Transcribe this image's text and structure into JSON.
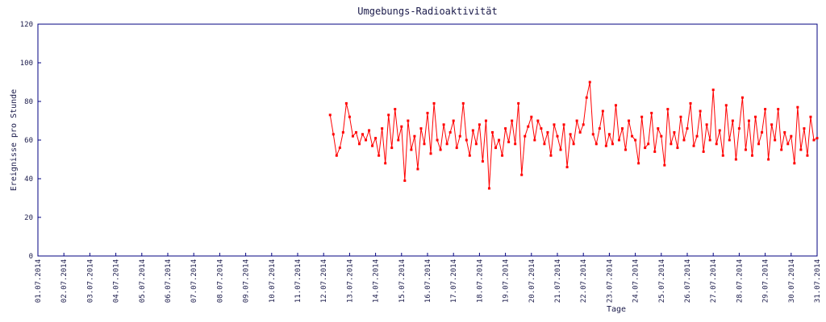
{
  "chart_data": {
    "type": "line",
    "title": "Umgebungs-Radioaktivität",
    "x_label": "Tage",
    "y_label": "Ereignisse pro Stunde",
    "color": "#ff0000",
    "xlim": [
      1,
      31
    ],
    "ylim": [
      0,
      120
    ],
    "yticks": [
      0,
      20,
      40,
      60,
      80,
      100,
      120
    ],
    "xticks": [
      {
        "value": 1,
        "label": "01.07.2014"
      },
      {
        "value": 2,
        "label": "02.07.2014"
      },
      {
        "value": 3,
        "label": "03.07.2014"
      },
      {
        "value": 4,
        "label": "04.07.2014"
      },
      {
        "value": 5,
        "label": "05.07.2014"
      },
      {
        "value": 6,
        "label": "06.07.2014"
      },
      {
        "value": 7,
        "label": "07.07.2014"
      },
      {
        "value": 8,
        "label": "08.07.2014"
      },
      {
        "value": 9,
        "label": "09.07.2014"
      },
      {
        "value": 10,
        "label": "10.07.2014"
      },
      {
        "value": 11,
        "label": "11.07.2014"
      },
      {
        "value": 12,
        "label": "12.07.2014"
      },
      {
        "value": 13,
        "label": "13.07.2014"
      },
      {
        "value": 14,
        "label": "14.07.2014"
      },
      {
        "value": 15,
        "label": "15.07.2014"
      },
      {
        "value": 16,
        "label": "16.07.2014"
      },
      {
        "value": 17,
        "label": "17.07.2014"
      },
      {
        "value": 18,
        "label": "18.07.2014"
      },
      {
        "value": 19,
        "label": "19.07.2014"
      },
      {
        "value": 20,
        "label": "20.07.2014"
      },
      {
        "value": 21,
        "label": "21.07.2014"
      },
      {
        "value": 22,
        "label": "22.07.2014"
      },
      {
        "value": 23,
        "label": "23.07.2014"
      },
      {
        "value": 24,
        "label": "24.07.2014"
      },
      {
        "value": 25,
        "label": "25.07.2014"
      },
      {
        "value": 26,
        "label": "26.07.2014"
      },
      {
        "value": 27,
        "label": "27.07.2014"
      },
      {
        "value": 28,
        "label": "28.07.2014"
      },
      {
        "value": 29,
        "label": "29.07.2014"
      },
      {
        "value": 30,
        "label": "30.07.2014"
      },
      {
        "value": 31,
        "label": "31.07.2014"
      }
    ],
    "x": [
      12.25,
      12.375,
      12.5,
      12.625,
      12.75,
      12.875,
      13,
      13.125,
      13.25,
      13.375,
      13.5,
      13.625,
      13.75,
      13.875,
      14,
      14.125,
      14.25,
      14.375,
      14.5,
      14.625,
      14.75,
      14.875,
      15,
      15.125,
      15.25,
      15.375,
      15.5,
      15.625,
      15.75,
      15.875,
      16,
      16.125,
      16.25,
      16.375,
      16.5,
      16.625,
      16.75,
      16.875,
      17,
      17.125,
      17.25,
      17.375,
      17.5,
      17.625,
      17.75,
      17.875,
      18,
      18.125,
      18.25,
      18.375,
      18.5,
      18.625,
      18.75,
      18.875,
      19,
      19.125,
      19.25,
      19.375,
      19.5,
      19.625,
      19.75,
      19.875,
      20,
      20.125,
      20.25,
      20.375,
      20.5,
      20.625,
      20.75,
      20.875,
      21,
      21.125,
      21.25,
      21.375,
      21.5,
      21.625,
      21.75,
      21.875,
      22,
      22.125,
      22.25,
      22.375,
      22.5,
      22.625,
      22.75,
      22.875,
      23,
      23.125,
      23.25,
      23.375,
      23.5,
      23.625,
      23.75,
      23.875,
      24,
      24.125,
      24.25,
      24.375,
      24.5,
      24.625,
      24.75,
      24.875,
      25,
      25.125,
      25.25,
      25.375,
      25.5,
      25.625,
      25.75,
      25.875,
      26,
      26.125,
      26.25,
      26.375,
      26.5,
      26.625,
      26.75,
      26.875,
      27,
      27.125,
      27.25,
      27.375,
      27.5,
      27.625,
      27.75,
      27.875,
      28,
      28.125,
      28.25,
      28.375,
      28.5,
      28.625,
      28.75,
      28.875,
      29,
      29.125,
      29.25,
      29.375,
      29.5,
      29.625,
      29.75,
      29.875,
      30,
      30.125,
      30.25,
      30.375,
      30.5,
      30.625,
      30.75,
      30.875,
      31
    ],
    "values": [
      73,
      63,
      52,
      56,
      64,
      79,
      72,
      62,
      64,
      58,
      63,
      60,
      65,
      57,
      61,
      52,
      66,
      48,
      73,
      56,
      76,
      60,
      67,
      39,
      70,
      55,
      62,
      45,
      66,
      58,
      74,
      53,
      79,
      60,
      55,
      68,
      58,
      64,
      70,
      56,
      62,
      79,
      60,
      52,
      65,
      58,
      68,
      49,
      70,
      35,
      64,
      56,
      60,
      52,
      66,
      59,
      70,
      58,
      79,
      42,
      62,
      67,
      72,
      60,
      70,
      66,
      58,
      64,
      52,
      68,
      62,
      55,
      68,
      46,
      63,
      58,
      70,
      64,
      68,
      82,
      90,
      63,
      58,
      66,
      75,
      57,
      63,
      58,
      78,
      60,
      66,
      55,
      70,
      62,
      60,
      48,
      72,
      56,
      58,
      74,
      54,
      66,
      62,
      47,
      76,
      58,
      64,
      56,
      72,
      60,
      66,
      79,
      57,
      62,
      75,
      54,
      68,
      60,
      86,
      58,
      65,
      52,
      78,
      60,
      70,
      50,
      66,
      82,
      55,
      70,
      52,
      72,
      58,
      64,
      76,
      50,
      68,
      60,
      76,
      55,
      64,
      58,
      62,
      48,
      77,
      55,
      66,
      52,
      72,
      60,
      61
    ]
  }
}
